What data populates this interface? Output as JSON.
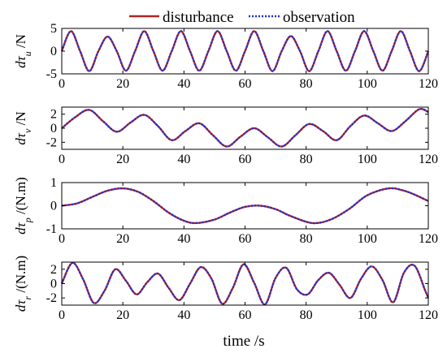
{
  "chart_data": [
    {
      "type": "line",
      "ylabel": {
        "base": "dτ",
        "sub": "u",
        "unit": " /N"
      },
      "xlim": [
        0,
        120
      ],
      "ylim": [
        -5,
        5
      ],
      "xticks": [
        0,
        20,
        40,
        60,
        80,
        100,
        120
      ],
      "yticks": [
        -5,
        0,
        5
      ],
      "series": [
        {
          "name": "disturbance",
          "x": [
            0,
            3,
            6,
            9,
            12,
            15,
            18,
            21,
            24,
            27,
            30,
            33,
            36,
            39,
            42,
            45,
            48,
            51,
            54,
            57,
            60,
            63,
            66,
            69,
            72,
            75,
            78,
            81,
            84,
            87,
            90,
            93,
            96,
            99,
            102,
            105,
            108,
            111,
            114,
            117,
            120
          ],
          "y": [
            0,
            4.4,
            0,
            -4.4,
            0,
            3.2,
            0,
            -4.3,
            0,
            4.4,
            0,
            -4.3,
            0,
            4.4,
            0,
            -4.3,
            0,
            4.4,
            0,
            -4.3,
            0,
            4.4,
            0,
            -4.4,
            0,
            3.3,
            0,
            -4.4,
            0,
            4.4,
            0,
            -4.3,
            0,
            4.4,
            0,
            -4.3,
            0,
            4.4,
            0,
            -4.4,
            0
          ]
        },
        {
          "name": "observation",
          "x": [
            0,
            3,
            6,
            9,
            12,
            15,
            18,
            21,
            24,
            27,
            30,
            33,
            36,
            39,
            42,
            45,
            48,
            51,
            54,
            57,
            60,
            63,
            66,
            69,
            72,
            75,
            78,
            81,
            84,
            87,
            90,
            93,
            96,
            99,
            102,
            105,
            108,
            111,
            114,
            117,
            120
          ],
          "y": [
            0,
            4.4,
            0,
            -4.4,
            0,
            3.2,
            0,
            -4.3,
            0,
            4.4,
            0,
            -4.3,
            0,
            4.4,
            0,
            -4.3,
            0,
            4.4,
            0,
            -4.3,
            0,
            4.4,
            0,
            -4.4,
            0,
            3.3,
            0,
            -4.4,
            0,
            4.4,
            0,
            -4.3,
            0,
            4.4,
            0,
            -4.3,
            0,
            4.4,
            0,
            -4.4,
            0
          ]
        }
      ]
    },
    {
      "type": "line",
      "ylabel": {
        "base": "dτ",
        "sub": "v",
        "unit": " /N"
      },
      "xlim": [
        0,
        120
      ],
      "ylim": [
        -3,
        3
      ],
      "xticks": [
        0,
        20,
        40,
        60,
        80,
        100,
        120
      ],
      "yticks": [
        -2,
        0,
        2
      ],
      "series": [
        {
          "name": "disturbance",
          "x": [
            0,
            4.5,
            9,
            13.5,
            18,
            22.5,
            27,
            31.5,
            36,
            40.5,
            45,
            49.5,
            54,
            58.5,
            63,
            67.5,
            72,
            76.5,
            81,
            85.5,
            90,
            94.5,
            99,
            103.5,
            108,
            112.5,
            117,
            120
          ],
          "y": [
            0,
            1.6,
            2.6,
            1.0,
            -0.5,
            0.8,
            1.9,
            0.3,
            -1.7,
            -0.4,
            0.7,
            -1.0,
            -2.6,
            -1.2,
            0.0,
            -1.3,
            -2.6,
            -1.0,
            0.6,
            -0.4,
            -1.7,
            0.3,
            1.8,
            0.7,
            -0.4,
            1.0,
            2.7,
            2.3
          ]
        },
        {
          "name": "observation",
          "x": [
            0,
            4.5,
            9,
            13.5,
            18,
            22.5,
            27,
            31.5,
            36,
            40.5,
            45,
            49.5,
            54,
            58.5,
            63,
            67.5,
            72,
            76.5,
            81,
            85.5,
            90,
            94.5,
            99,
            103.5,
            108,
            112.5,
            117,
            120
          ],
          "y": [
            0,
            1.6,
            2.6,
            1.0,
            -0.5,
            0.8,
            1.9,
            0.3,
            -1.7,
            -0.4,
            0.7,
            -1.0,
            -2.6,
            -1.2,
            0.0,
            -1.3,
            -2.6,
            -1.0,
            0.6,
            -0.4,
            -1.7,
            0.3,
            1.8,
            0.7,
            -0.4,
            1.0,
            2.7,
            2.3
          ]
        }
      ]
    },
    {
      "type": "line",
      "ylabel": {
        "base": "dτ",
        "sub": "p",
        "unit": " /(N.m)"
      },
      "xlim": [
        0,
        120
      ],
      "ylim": [
        -1,
        1
      ],
      "xticks": [
        0,
        20,
        40,
        60,
        80,
        100,
        120
      ],
      "yticks": [
        -1,
        0,
        1
      ],
      "series": [
        {
          "name": "disturbance",
          "x": [
            0,
            5,
            10,
            15,
            20,
            25,
            30,
            35,
            40,
            44,
            50,
            55,
            60,
            65,
            70,
            75,
            82,
            88,
            94,
            100,
            107,
            112,
            116,
            120
          ],
          "y": [
            0,
            0.1,
            0.38,
            0.65,
            0.75,
            0.6,
            0.2,
            -0.3,
            -0.65,
            -0.75,
            -0.6,
            -0.3,
            -0.05,
            0,
            -0.15,
            -0.45,
            -0.75,
            -0.6,
            -0.15,
            0.45,
            0.75,
            0.65,
            0.45,
            0.2
          ]
        },
        {
          "name": "observation",
          "x": [
            0,
            5,
            10,
            15,
            20,
            25,
            30,
            35,
            40,
            44,
            50,
            55,
            60,
            65,
            70,
            75,
            82,
            88,
            94,
            100,
            107,
            112,
            116,
            120
          ],
          "y": [
            0,
            0.1,
            0.38,
            0.65,
            0.75,
            0.6,
            0.2,
            -0.3,
            -0.65,
            -0.75,
            -0.6,
            -0.3,
            -0.05,
            0,
            -0.15,
            -0.45,
            -0.75,
            -0.6,
            -0.15,
            0.45,
            0.75,
            0.65,
            0.45,
            0.2
          ]
        }
      ]
    },
    {
      "type": "line",
      "ylabel": {
        "base": "dτ",
        "sub": "r",
        "unit": " /(N.m)"
      },
      "xlim": [
        0,
        120
      ],
      "ylim": [
        -3,
        3
      ],
      "xticks": [
        0,
        20,
        40,
        60,
        80,
        100,
        120
      ],
      "yticks": [
        -2,
        0,
        2
      ],
      "series": [
        {
          "name": "disturbance",
          "x": [
            0,
            3.5,
            7,
            10.5,
            14,
            17.5,
            21,
            24.5,
            28,
            31.5,
            35,
            38.5,
            42,
            45.5,
            49,
            52.5,
            56,
            59.5,
            63,
            66.5,
            70,
            73.5,
            77,
            80.5,
            84,
            87.5,
            91,
            94.5,
            98,
            101.5,
            105,
            108.5,
            112,
            115.5,
            119,
            120
          ],
          "y": [
            0,
            2.9,
            0.6,
            -2.7,
            -1.0,
            2.0,
            0.4,
            -1.5,
            0.2,
            1.4,
            -0.6,
            -2.3,
            0.0,
            2.3,
            0.7,
            -2.8,
            -0.6,
            2.7,
            0.1,
            -2.9,
            0.8,
            2.2,
            -0.8,
            -1.5,
            0.5,
            1.5,
            -0.2,
            -2.0,
            0.7,
            2.4,
            0.5,
            -2.6,
            1.5,
            2.5,
            -1.0,
            -2.0
          ]
        },
        {
          "name": "observation",
          "x": [
            0,
            3.5,
            7,
            10.5,
            14,
            17.5,
            21,
            24.5,
            28,
            31.5,
            35,
            38.5,
            42,
            45.5,
            49,
            52.5,
            56,
            59.5,
            63,
            66.5,
            70,
            73.5,
            77,
            80.5,
            84,
            87.5,
            91,
            94.5,
            98,
            101.5,
            105,
            108.5,
            112,
            115.5,
            119,
            120
          ],
          "y": [
            0,
            2.9,
            0.6,
            -2.7,
            -1.0,
            2.0,
            0.4,
            -1.5,
            0.2,
            1.4,
            -0.6,
            -2.3,
            0.0,
            2.3,
            0.7,
            -2.8,
            -0.6,
            2.7,
            0.1,
            -2.9,
            0.8,
            2.2,
            -0.8,
            -1.5,
            0.5,
            1.5,
            -0.2,
            -2.0,
            0.7,
            2.4,
            0.5,
            -2.6,
            1.5,
            2.5,
            -1.0,
            -2.0
          ]
        }
      ]
    }
  ],
  "legend": {
    "placement": "top",
    "items": [
      {
        "label": "disturbance",
        "color": "#b22222",
        "style": "solid"
      },
      {
        "label": "observation",
        "color": "#1f2fd0",
        "style": "dotted"
      }
    ]
  },
  "xlabel": "time /s",
  "colors": {
    "disturbance": "#b22222",
    "observation": "#1f2fd0",
    "axis": "#000000"
  }
}
